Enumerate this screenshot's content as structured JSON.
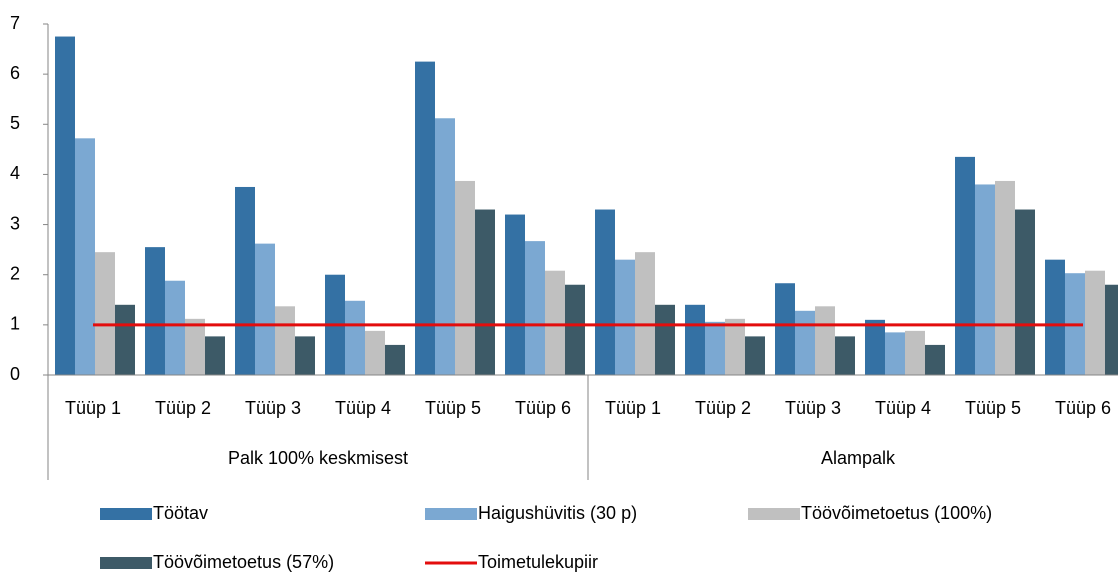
{
  "chart_data": {
    "type": "bar",
    "categories": [
      "Tüüp 1",
      "Tüüp 2",
      "Tüüp 3",
      "Tüüp 4",
      "Tüüp 5",
      "Tüüp 6",
      "Tüüp 1",
      "Tüüp 2",
      "Tüüp 3",
      "Tüüp 4",
      "Tüüp 5",
      "Tüüp 6"
    ],
    "groups": [
      "Palk 100% keskmisest",
      "Alampalk"
    ],
    "series": [
      {
        "name": "Töötav",
        "color": "#3471a4",
        "values": [
          6.75,
          2.55,
          3.75,
          2.0,
          6.25,
          3.2,
          3.3,
          1.4,
          1.83,
          1.1,
          4.35,
          2.3
        ]
      },
      {
        "name": "Haigushüvitis (30 p)",
        "color": "#7ba8d2",
        "values": [
          4.72,
          1.88,
          2.62,
          1.48,
          5.12,
          2.67,
          2.3,
          1.06,
          1.28,
          0.85,
          3.8,
          2.03
        ]
      },
      {
        "name": "Töövõimetoetus (100%)",
        "color": "#c0c0c0",
        "values": [
          2.45,
          1.12,
          1.37,
          0.88,
          3.87,
          2.08,
          2.45,
          1.12,
          1.37,
          0.88,
          3.87,
          2.08
        ]
      },
      {
        "name": "Töövõimetoetus (57%)",
        "color": "#3d5a67",
        "values": [
          1.4,
          0.77,
          0.77,
          0.6,
          3.3,
          1.8,
          1.4,
          0.77,
          0.77,
          0.6,
          3.3,
          1.8
        ]
      },
      {
        "name": "Toimetulekupiir",
        "color": "#e30d0d",
        "type": "line",
        "values": [
          1,
          1,
          1,
          1,
          1,
          1,
          1,
          1,
          1,
          1,
          1,
          1
        ]
      }
    ],
    "ylim": [
      0,
      7
    ],
    "yticks": [
      0,
      1,
      2,
      3,
      4,
      5,
      6,
      7
    ],
    "grid": false
  }
}
